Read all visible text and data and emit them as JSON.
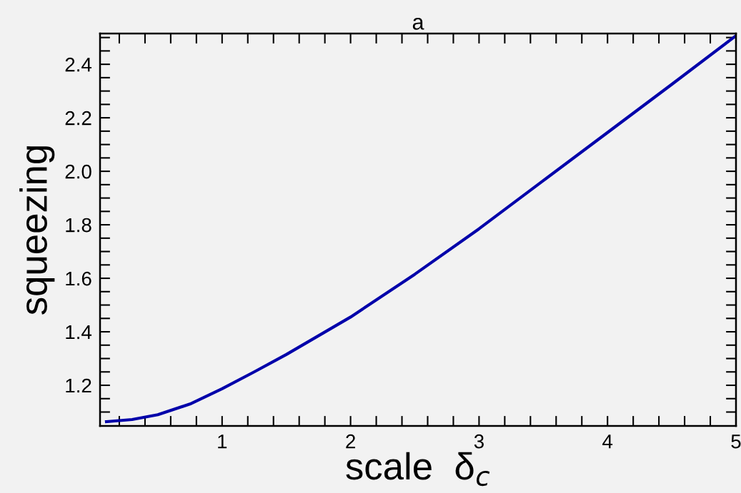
{
  "chart_data": {
    "type": "line",
    "title": "a",
    "xlabel": "scale  δ$_{c}$",
    "ylabel": "squeezing",
    "x": [
      0.1,
      0.3,
      0.5,
      0.75,
      1,
      1.25,
      1.5,
      1.75,
      2,
      2.5,
      3,
      3.5,
      4,
      4.5,
      5
    ],
    "series": [
      {
        "color": "#0000aa",
        "values": [
          1.064,
          1.072,
          1.09,
          1.13,
          1.187,
          1.25,
          1.315,
          1.385,
          1.455,
          1.615,
          1.785,
          1.965,
          2.145,
          2.325,
          2.507
        ]
      }
    ],
    "xlim": [
      0.05,
      5.0
    ],
    "ylim": [
      1.048,
      2.515
    ],
    "xticks": [
      {
        "value": 0.2,
        "label": null
      },
      {
        "value": 0.4,
        "label": null
      },
      {
        "value": 0.6,
        "label": null
      },
      {
        "value": 0.8,
        "label": null
      },
      1,
      {
        "value": 1.2,
        "label": null
      },
      {
        "value": 1.4,
        "label": null
      },
      {
        "value": 1.6,
        "label": null
      },
      {
        "value": 1.8,
        "label": null
      },
      2,
      {
        "value": 2.2,
        "label": null
      },
      {
        "value": 2.4,
        "label": null
      },
      {
        "value": 2.6,
        "label": null
      },
      {
        "value": 2.8,
        "label": null
      },
      3,
      {
        "value": 3.2,
        "label": null
      },
      {
        "value": 3.4,
        "label": null
      },
      {
        "value": 3.6,
        "label": null
      },
      {
        "value": 3.8,
        "label": null
      },
      4,
      {
        "value": 4.2,
        "label": null
      },
      {
        "value": 4.4,
        "label": null
      },
      {
        "value": 4.6,
        "label": null
      },
      {
        "value": 4.8,
        "label": null
      },
      5
    ],
    "yticks": [
      {
        "value": 1.1,
        "label": null
      },
      {
        "value": 1.15,
        "label": null
      },
      {
        "value": 1.2,
        "label": "1.2"
      },
      {
        "value": 1.25,
        "label": null
      },
      {
        "value": 1.3,
        "label": null
      },
      {
        "value": 1.35,
        "label": null
      },
      {
        "value": 1.4,
        "label": "1.4"
      },
      {
        "value": 1.45,
        "label": null
      },
      {
        "value": 1.5,
        "label": null
      },
      {
        "value": 1.55,
        "label": null
      },
      {
        "value": 1.6,
        "label": "1.6"
      },
      {
        "value": 1.65,
        "label": null
      },
      {
        "value": 1.7,
        "label": null
      },
      {
        "value": 1.75,
        "label": null
      },
      {
        "value": 1.8,
        "label": "1.8"
      },
      {
        "value": 1.85,
        "label": null
      },
      {
        "value": 1.9,
        "label": null
      },
      {
        "value": 1.95,
        "label": null
      },
      {
        "value": 2.0,
        "label": "2.0"
      },
      {
        "value": 2.05,
        "label": null
      },
      {
        "value": 2.1,
        "label": null
      },
      {
        "value": 2.15,
        "label": null
      },
      {
        "value": 2.2,
        "label": "2.2"
      },
      {
        "value": 2.25,
        "label": null
      },
      {
        "value": 2.3,
        "label": null
      },
      {
        "value": 2.35,
        "label": null
      },
      {
        "value": 2.4,
        "label": "2.4"
      },
      {
        "value": 2.45,
        "label": null
      },
      {
        "value": 2.5,
        "label": null
      }
    ],
    "grid": false,
    "marker": "none",
    "line_style": "solid"
  }
}
